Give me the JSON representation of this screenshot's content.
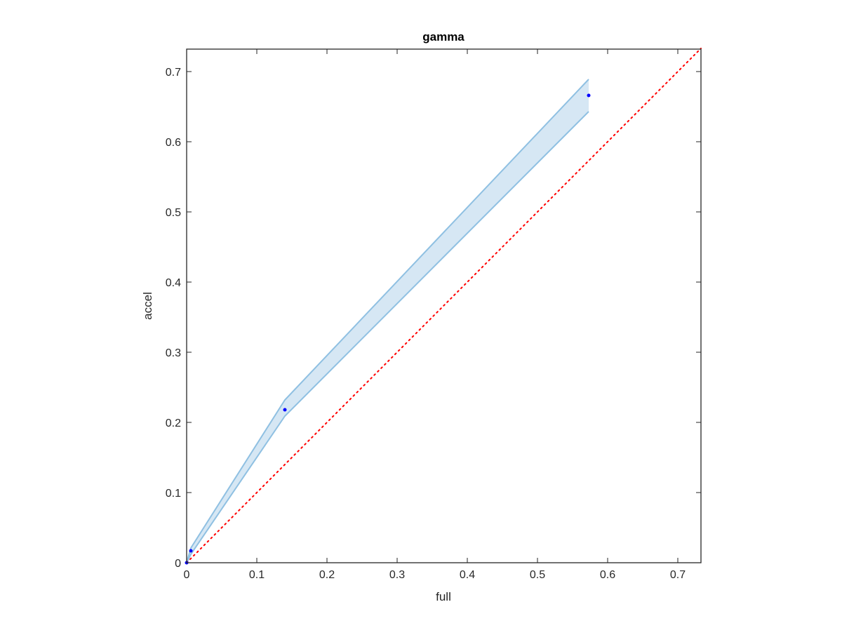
{
  "chart_data": {
    "type": "line",
    "title": "gamma",
    "xlabel": "full",
    "ylabel": "accel",
    "xlim": [
      0,
      0.733
    ],
    "ylim": [
      0,
      0.732
    ],
    "xticks": [
      0,
      0.1,
      0.2,
      0.3,
      0.4,
      0.5,
      0.6,
      0.7
    ],
    "xtick_labels": [
      "0",
      "0.1",
      "0.2",
      "0.3",
      "0.4",
      "0.5",
      "0.6",
      "0.7"
    ],
    "yticks": [
      0,
      0.1,
      0.2,
      0.3,
      0.4,
      0.5,
      0.6,
      0.7
    ],
    "ytick_labels": [
      "0",
      "0.1",
      "0.2",
      "0.3",
      "0.4",
      "0.5",
      "0.6",
      "0.7"
    ],
    "grid": false,
    "series": [
      {
        "kind": "scatter",
        "color": "#0000ff",
        "x": [
          0,
          0.006,
          0.14,
          0.573
        ],
        "y": [
          0,
          0.017,
          0.218,
          0.666
        ]
      }
    ],
    "band": {
      "color": "#0072bd",
      "x": [
        0,
        0.006,
        0.14,
        0.573
      ],
      "upper": [
        0,
        0.021,
        0.232,
        0.689
      ],
      "lower": [
        0,
        0.012,
        0.209,
        0.643
      ]
    },
    "reference_line": {
      "style": "dotted",
      "color": "#ff0000",
      "x": [
        0,
        0.733
      ],
      "y": [
        0,
        0.733
      ]
    }
  }
}
